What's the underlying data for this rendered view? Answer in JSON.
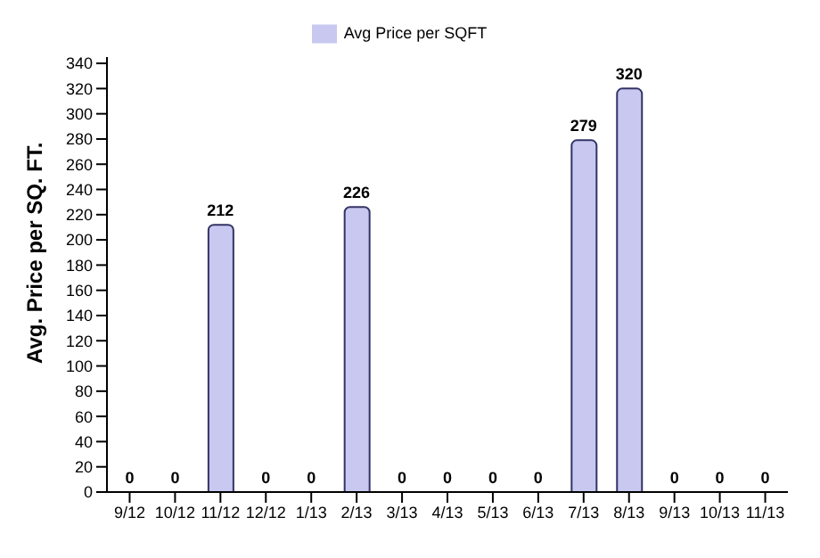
{
  "chart_data": {
    "type": "bar",
    "ylabel": "Avg. Price per SQ. FT.",
    "categories": [
      "9/12",
      "10/12",
      "11/12",
      "12/12",
      "1/13",
      "2/13",
      "3/13",
      "4/13",
      "5/13",
      "6/13",
      "7/13",
      "8/13",
      "9/13",
      "10/13",
      "11/13"
    ],
    "series": [
      {
        "name": "Avg Price per SQFT",
        "color": "#c8c8f0",
        "values": [
          0,
          0,
          212,
          0,
          0,
          226,
          0,
          0,
          0,
          0,
          279,
          320,
          0,
          0,
          0
        ]
      }
    ],
    "ylim": [
      0,
      345
    ],
    "yticks": [
      0,
      20,
      40,
      60,
      80,
      100,
      120,
      140,
      160,
      180,
      200,
      220,
      240,
      260,
      280,
      300,
      320,
      340
    ],
    "data_labels": true,
    "legend": "top",
    "grid": false
  }
}
